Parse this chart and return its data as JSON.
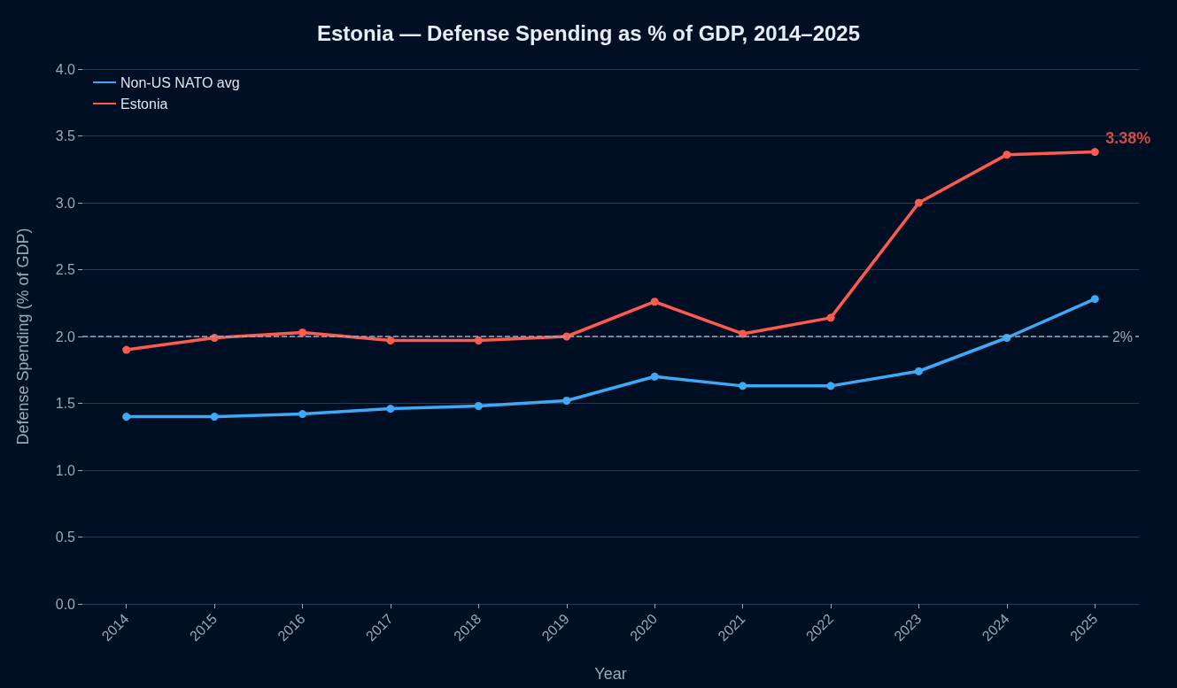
{
  "chart_data": {
    "type": "line",
    "title": "Estonia — Defense Spending as % of GDP, 2014–2025",
    "xlabel": "Year",
    "ylabel": "Defense Spending (% of GDP)",
    "categories": [
      "2014",
      "2015",
      "2016",
      "2017",
      "2018",
      "2019",
      "2020",
      "2021",
      "2022",
      "2023",
      "2024",
      "2025"
    ],
    "series": [
      {
        "name": "Non-US NATO avg",
        "color": "#3fa9f5",
        "values": [
          1.4,
          1.4,
          1.42,
          1.46,
          1.48,
          1.52,
          1.7,
          1.63,
          1.63,
          1.74,
          1.99,
          2.28
        ]
      },
      {
        "name": "Estonia",
        "color": "#ff5a4e",
        "values": [
          1.9,
          1.99,
          2.03,
          1.97,
          1.97,
          2.0,
          2.26,
          2.02,
          2.14,
          3.0,
          3.36,
          3.38
        ]
      }
    ],
    "ylim": [
      0,
      4
    ],
    "yticks": [
      {
        "value": 0,
        "label": "0.0"
      },
      0.5,
      {
        "value": 1,
        "label": "1.0"
      },
      1.5,
      {
        "value": 2,
        "label": "2.0"
      },
      2.5,
      {
        "value": 3,
        "label": "3.0"
      },
      3.5,
      {
        "value": 4,
        "label": "4.0"
      }
    ],
    "ref_lines": [
      {
        "axis": "y",
        "value": 2,
        "label": "2%",
        "color": "#9aa8bd",
        "line_style": "dashed"
      }
    ],
    "annotations": [
      {
        "text": "3.38%",
        "x": "2025",
        "y": 3.38
      }
    ],
    "grid": "y",
    "legend": "top left",
    "marker": "circle",
    "line_style": "solid"
  }
}
